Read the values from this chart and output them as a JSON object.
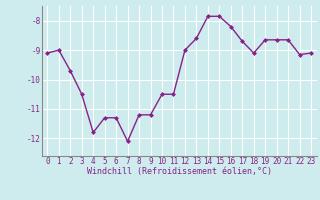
{
  "x": [
    0,
    1,
    2,
    3,
    4,
    5,
    6,
    7,
    8,
    9,
    10,
    11,
    12,
    13,
    14,
    15,
    16,
    17,
    18,
    19,
    20,
    21,
    22,
    23
  ],
  "y": [
    -9.1,
    -9.0,
    -9.7,
    -10.5,
    -11.8,
    -11.3,
    -11.3,
    -12.1,
    -11.2,
    -11.2,
    -10.5,
    -10.5,
    -9.0,
    -8.6,
    -7.85,
    -7.85,
    -8.2,
    -8.7,
    -9.1,
    -8.65,
    -8.65,
    -8.65,
    -9.15,
    -9.1
  ],
  "line_color": "#882288",
  "marker": "D",
  "markersize": 2.0,
  "linewidth": 1.0,
  "xlabel": "Windchill (Refroidissement éolien,°C)",
  "xlabel_fontsize": 6.0,
  "xlim": [
    -0.5,
    23.5
  ],
  "ylim": [
    -12.6,
    -7.5
  ],
  "yticks": [
    -12,
    -11,
    -10,
    -9,
    -8
  ],
  "xticks": [
    0,
    1,
    2,
    3,
    4,
    5,
    6,
    7,
    8,
    9,
    10,
    11,
    12,
    13,
    14,
    15,
    16,
    17,
    18,
    19,
    20,
    21,
    22,
    23
  ],
  "tick_fontsize": 5.5,
  "bg_color": "#ceeced",
  "grid_color": "#b8dfe0",
  "spine_color": "#888888"
}
